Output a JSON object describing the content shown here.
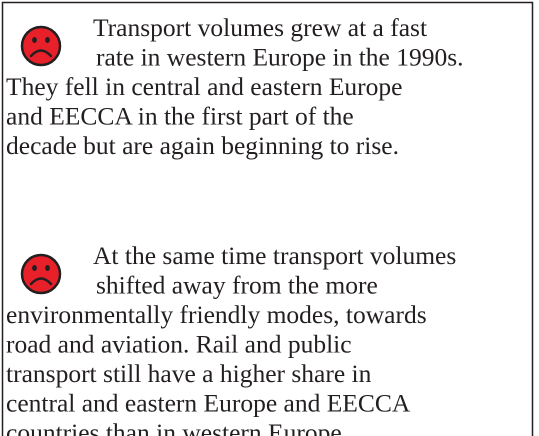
{
  "paragraphs": [
    {
      "lines": [
        "Transport volumes grew at a fast",
        "rate in western Europe in the 1990s.",
        "They fell in central and eastern Europe",
        "and EECCA in the first part of the",
        "decade but are again beginning to rise."
      ]
    },
    {
      "lines": [
        "At the same time transport volumes",
        "shifted away from the more",
        "environmentally friendly modes, towards",
        "road and aviation. Rail and public",
        "transport still have a higher share in",
        "central and eastern Europe and EECCA",
        "countries than in western Europe."
      ]
    }
  ]
}
